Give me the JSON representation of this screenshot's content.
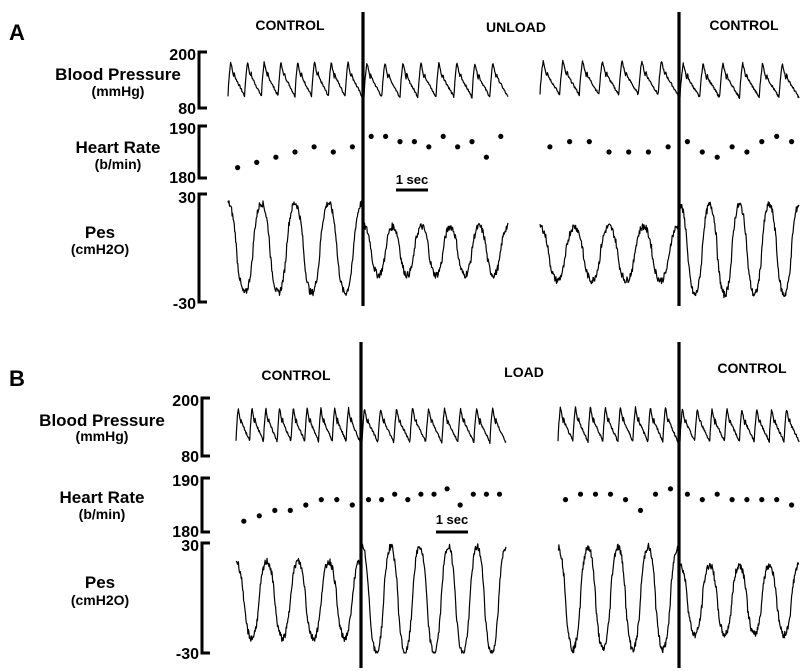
{
  "chart_data": [
    {
      "type": "line",
      "panel_label": "A",
      "condition_labels": [
        "CONTROL",
        "UNLOAD",
        "CONTROL"
      ],
      "scale_bar_label": "1 sec",
      "series": [
        {
          "name": "Blood Pressure",
          "unit": "(mmHg)",
          "ylim": [
            80,
            200
          ],
          "tick_labels": [
            "200",
            "80"
          ],
          "segments": [
            {
              "beats": 8,
              "peak": 180,
              "trough": 105
            },
            {
              "beats": 8,
              "peak": 178,
              "trough": 103
            },
            {
              "beats": 7,
              "peak": 182,
              "trough": 108
            },
            {
              "beats": 6,
              "peak": 176,
              "trough": 102
            }
          ]
        },
        {
          "name": "Heart Rate",
          "unit": "(b/min)",
          "ylim": [
            180,
            190
          ],
          "tick_labels": [
            "190",
            "180"
          ],
          "segments": [
            {
              "values": [
                182,
                183,
                184,
                185,
                186,
                185,
                186
              ]
            },
            {
              "values": [
                188,
                188,
                187,
                187,
                186,
                188,
                186,
                187,
                184,
                188
              ]
            },
            {
              "values": [
                186,
                187,
                187,
                185,
                185,
                185,
                186
              ]
            },
            {
              "values": [
                187,
                185,
                184,
                186,
                185,
                187,
                188,
                187
              ]
            }
          ]
        },
        {
          "name": "Pes",
          "unit": "(cmH2O)",
          "ylim": [
            -30,
            30
          ],
          "tick_labels": [
            "30",
            "-30"
          ],
          "segments": [
            {
              "cycles": 4,
              "max": 25,
              "min": -25
            },
            {
              "cycles": 5,
              "max": 12,
              "min": -15
            },
            {
              "cycles": 4,
              "max": 12,
              "min": -18
            },
            {
              "cycles": 4,
              "max": 24,
              "min": -26
            }
          ]
        }
      ]
    },
    {
      "type": "line",
      "panel_label": "B",
      "condition_labels": [
        "CONTROL",
        "LOAD",
        "CONTROL"
      ],
      "scale_bar_label": "1 sec",
      "series": [
        {
          "name": "Blood Pressure",
          "unit": "(mmHg)",
          "ylim": [
            80,
            200
          ],
          "tick_labels": [
            "200",
            "80"
          ],
          "segments": [
            {
              "beats": 9,
              "peak": 180,
              "trough": 110
            },
            {
              "beats": 9,
              "peak": 180,
              "trough": 108
            },
            {
              "beats": 8,
              "peak": 182,
              "trough": 110
            },
            {
              "beats": 8,
              "peak": 178,
              "trough": 110
            }
          ]
        },
        {
          "name": "Heart Rate",
          "unit": "(b/min)",
          "ylim": [
            180,
            190
          ],
          "tick_labels": [
            "190",
            "180"
          ],
          "segments": [
            {
              "values": [
                182,
                183,
                184,
                184,
                185,
                186,
                186,
                185
              ]
            },
            {
              "values": [
                186,
                186,
                187,
                186,
                187,
                187,
                188,
                185,
                187,
                187,
                187
              ]
            },
            {
              "values": [
                186,
                187,
                187,
                187,
                186,
                184,
                187,
                188
              ]
            },
            {
              "values": [
                187,
                186,
                187,
                186,
                186,
                186,
                186,
                185
              ]
            }
          ]
        },
        {
          "name": "Pes",
          "unit": "(cmH2O)",
          "ylim": [
            -30,
            30
          ],
          "tick_labels": [
            "30",
            "-30"
          ],
          "segments": [
            {
              "cycles": 4,
              "max": 20,
              "min": -22
            },
            {
              "cycles": 5,
              "max": 28,
              "min": -30
            },
            {
              "cycles": 4,
              "max": 28,
              "min": -28
            },
            {
              "cycles": 4,
              "max": 18,
              "min": -20
            }
          ]
        }
      ]
    }
  ]
}
